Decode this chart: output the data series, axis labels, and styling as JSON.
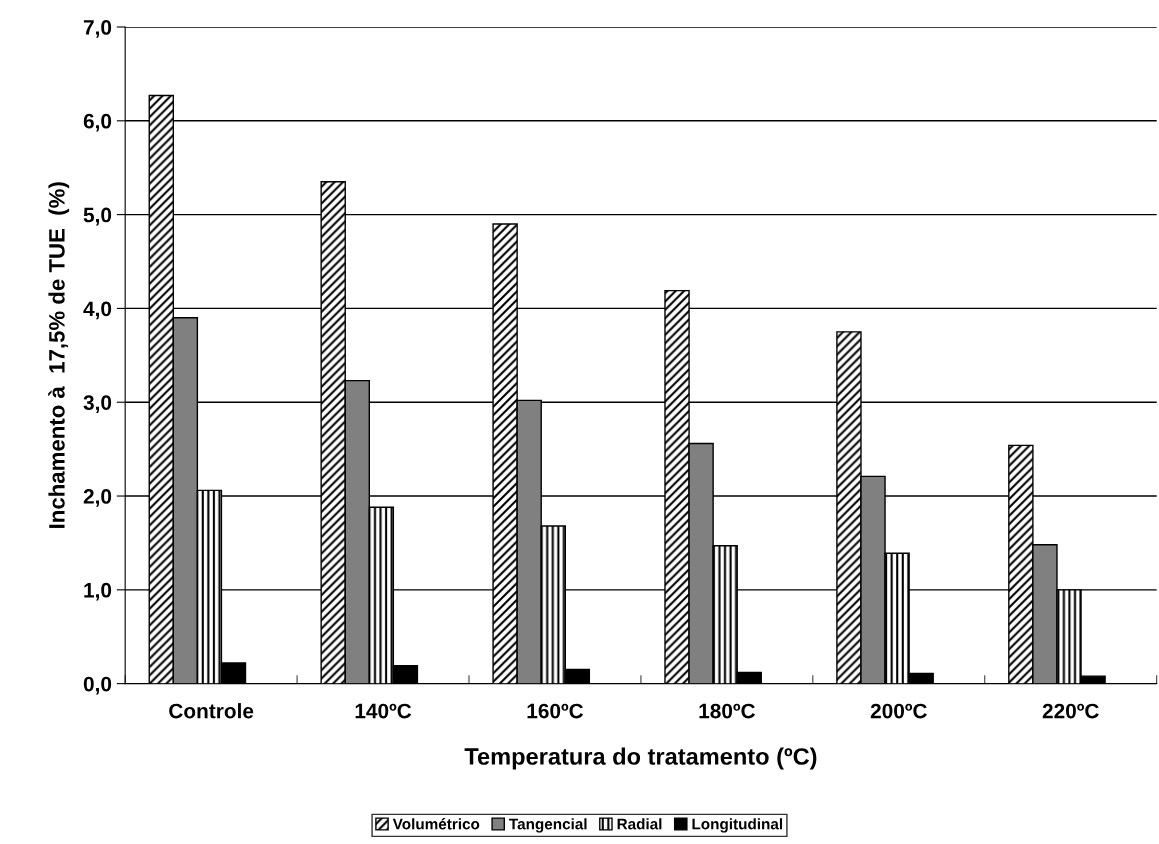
{
  "chart_data": {
    "type": "bar",
    "xlabel": "Temperatura do tratamento (ºC)",
    "ylabel": "Inchamento à  17,5% de TUE  (%)",
    "categories": [
      "Controle",
      "140ºC",
      "160ºC",
      "180ºC",
      "200ºC",
      "220ºC"
    ],
    "series": [
      {
        "name": "Volumétrico",
        "color": "#000000",
        "values": [
          6.27,
          5.35,
          4.9,
          4.19,
          3.75,
          2.54
        ]
      },
      {
        "name": "Tangencial",
        "color": "#808080",
        "values": [
          3.9,
          3.23,
          3.02,
          2.56,
          2.21,
          1.48
        ]
      },
      {
        "name": "Radial",
        "color": "#000000",
        "values": [
          2.06,
          1.88,
          1.68,
          1.47,
          1.39,
          1.0
        ]
      },
      {
        "name": "Longitudinal",
        "color": "#000000",
        "values": [
          0.22,
          0.19,
          0.15,
          0.12,
          0.11,
          0.08
        ]
      }
    ],
    "ylim": [
      0,
      7
    ],
    "yticks": [
      {
        "value": 0,
        "label": "0,0"
      },
      {
        "value": 1,
        "label": "1,0"
      },
      {
        "value": 2,
        "label": "2,0"
      },
      {
        "value": 3,
        "label": "3,0"
      },
      {
        "value": 4,
        "label": "4,0"
      },
      {
        "value": 5,
        "label": "5,0"
      },
      {
        "value": 6,
        "label": "6,0"
      },
      {
        "value": 7,
        "label": "7,0"
      }
    ],
    "grid": "y",
    "legend": "bottom"
  }
}
